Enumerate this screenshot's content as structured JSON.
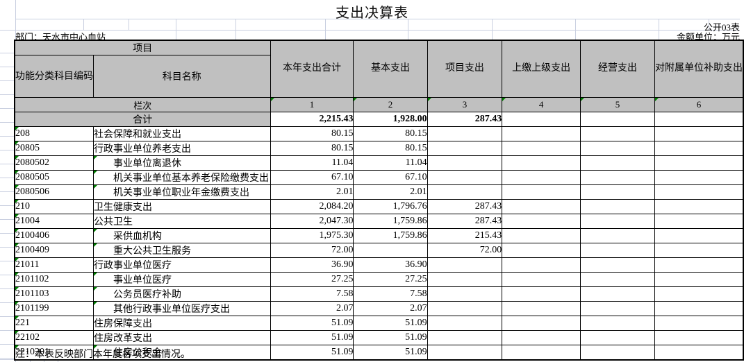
{
  "meta": {
    "title": "支出决算表",
    "sheet_label": "公开03表",
    "department": "部门：天水市中心血站",
    "unit": "金额单位：万元",
    "note": "注：本表反映部门本年度各项支出情况。"
  },
  "table": {
    "group_header": "项目",
    "code_header": "功能分类科目编码",
    "name_header": "科目名称",
    "columns": [
      "本年支出合计",
      "基本支出",
      "项目支出",
      "上缴上级支出",
      "经营支出",
      "对附属单位补助支出"
    ],
    "lanci_label": "栏次",
    "lanci_numbers": [
      "1",
      "2",
      "3",
      "4",
      "5",
      "6"
    ],
    "total_label": "合计",
    "total_values": [
      "2,215.43",
      "1,928.00",
      "287.43",
      "",
      "",
      ""
    ],
    "rows": [
      {
        "code": "208",
        "name": "社会保障和就业支出",
        "indent": 0,
        "values": [
          "80.15",
          "80.15",
          "",
          "",
          "",
          ""
        ]
      },
      {
        "code": "20805",
        "name": "行政事业单位养老支出",
        "indent": 0,
        "values": [
          "80.15",
          "80.15",
          "",
          "",
          "",
          ""
        ]
      },
      {
        "code": "2080502",
        "name": "事业单位离退休",
        "indent": 1,
        "values": [
          "11.04",
          "11.04",
          "",
          "",
          "",
          ""
        ]
      },
      {
        "code": "2080505",
        "name": "机关事业单位基本养老保险缴费支出",
        "indent": 1,
        "values": [
          "67.10",
          "67.10",
          "",
          "",
          "",
          ""
        ]
      },
      {
        "code": "2080506",
        "name": "机关事业单位职业年金缴费支出",
        "indent": 1,
        "values": [
          "2.01",
          "2.01",
          "",
          "",
          "",
          ""
        ]
      },
      {
        "code": "210",
        "name": "卫生健康支出",
        "indent": 0,
        "values": [
          "2,084.20",
          "1,796.76",
          "287.43",
          "",
          "",
          ""
        ]
      },
      {
        "code": "21004",
        "name": "公共卫生",
        "indent": 0,
        "values": [
          "2,047.30",
          "1,759.86",
          "287.43",
          "",
          "",
          ""
        ]
      },
      {
        "code": "2100406",
        "name": "采供血机构",
        "indent": 1,
        "values": [
          "1,975.30",
          "1,759.86",
          "215.43",
          "",
          "",
          ""
        ]
      },
      {
        "code": "2100409",
        "name": "重大公共卫生服务",
        "indent": 1,
        "values": [
          "72.00",
          "",
          "72.00",
          "",
          "",
          ""
        ]
      },
      {
        "code": "21011",
        "name": "行政事业单位医疗",
        "indent": 0,
        "values": [
          "36.90",
          "36.90",
          "",
          "",
          "",
          ""
        ]
      },
      {
        "code": "2101102",
        "name": "事业单位医疗",
        "indent": 1,
        "values": [
          "27.25",
          "27.25",
          "",
          "",
          "",
          ""
        ]
      },
      {
        "code": "2101103",
        "name": "公务员医疗补助",
        "indent": 1,
        "values": [
          "7.58",
          "7.58",
          "",
          "",
          "",
          ""
        ]
      },
      {
        "code": "2101199",
        "name": "其他行政事业单位医疗支出",
        "indent": 1,
        "values": [
          "2.07",
          "2.07",
          "",
          "",
          "",
          ""
        ]
      },
      {
        "code": "221",
        "name": "住房保障支出",
        "indent": 0,
        "values": [
          "51.09",
          "51.09",
          "",
          "",
          "",
          ""
        ]
      },
      {
        "code": "22102",
        "name": "住房改革支出",
        "indent": 0,
        "values": [
          "51.09",
          "51.09",
          "",
          "",
          "",
          ""
        ]
      },
      {
        "code": "2210201",
        "name": "住房公积金",
        "indent": 1,
        "values": [
          "51.09",
          "51.09",
          "",
          "",
          "",
          ""
        ]
      }
    ]
  },
  "colors": {
    "header_fill": "#c0c0c0",
    "table_border": "#000000",
    "gridline": "#c9cfe0",
    "flag_green": "#008000"
  }
}
